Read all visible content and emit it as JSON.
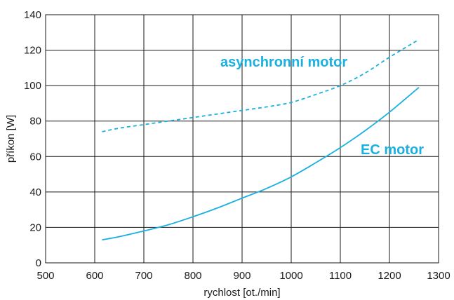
{
  "chart_data": {
    "type": "line",
    "xlabel": "rychlost [ot./min]",
    "ylabel": "příkon [W]",
    "xlim": [
      500,
      1300
    ],
    "ylim": [
      0,
      140
    ],
    "xticks": [
      500,
      600,
      700,
      800,
      900,
      1000,
      1100,
      1200,
      1300
    ],
    "yticks": [
      0,
      20,
      40,
      60,
      80,
      100,
      120,
      140
    ],
    "grid": true,
    "series_color": "#1ab0e0",
    "series": [
      {
        "name": "asynchronní motor",
        "style": "dashed",
        "x": [
          615,
          650,
          700,
          750,
          800,
          850,
          900,
          950,
          1000,
          1050,
          1100,
          1150,
          1200,
          1260
        ],
        "y": [
          74,
          76,
          78,
          80,
          82,
          84,
          86,
          88,
          90.5,
          95,
          100,
          107,
          116,
          126
        ]
      },
      {
        "name": "EC motor",
        "style": "solid",
        "x": [
          615,
          650,
          700,
          750,
          800,
          850,
          900,
          950,
          1000,
          1050,
          1100,
          1150,
          1200,
          1260
        ],
        "y": [
          13,
          14.8,
          18,
          21.5,
          26,
          31,
          36.5,
          42,
          48.5,
          56.5,
          65,
          74.5,
          85,
          99
        ]
      }
    ]
  }
}
